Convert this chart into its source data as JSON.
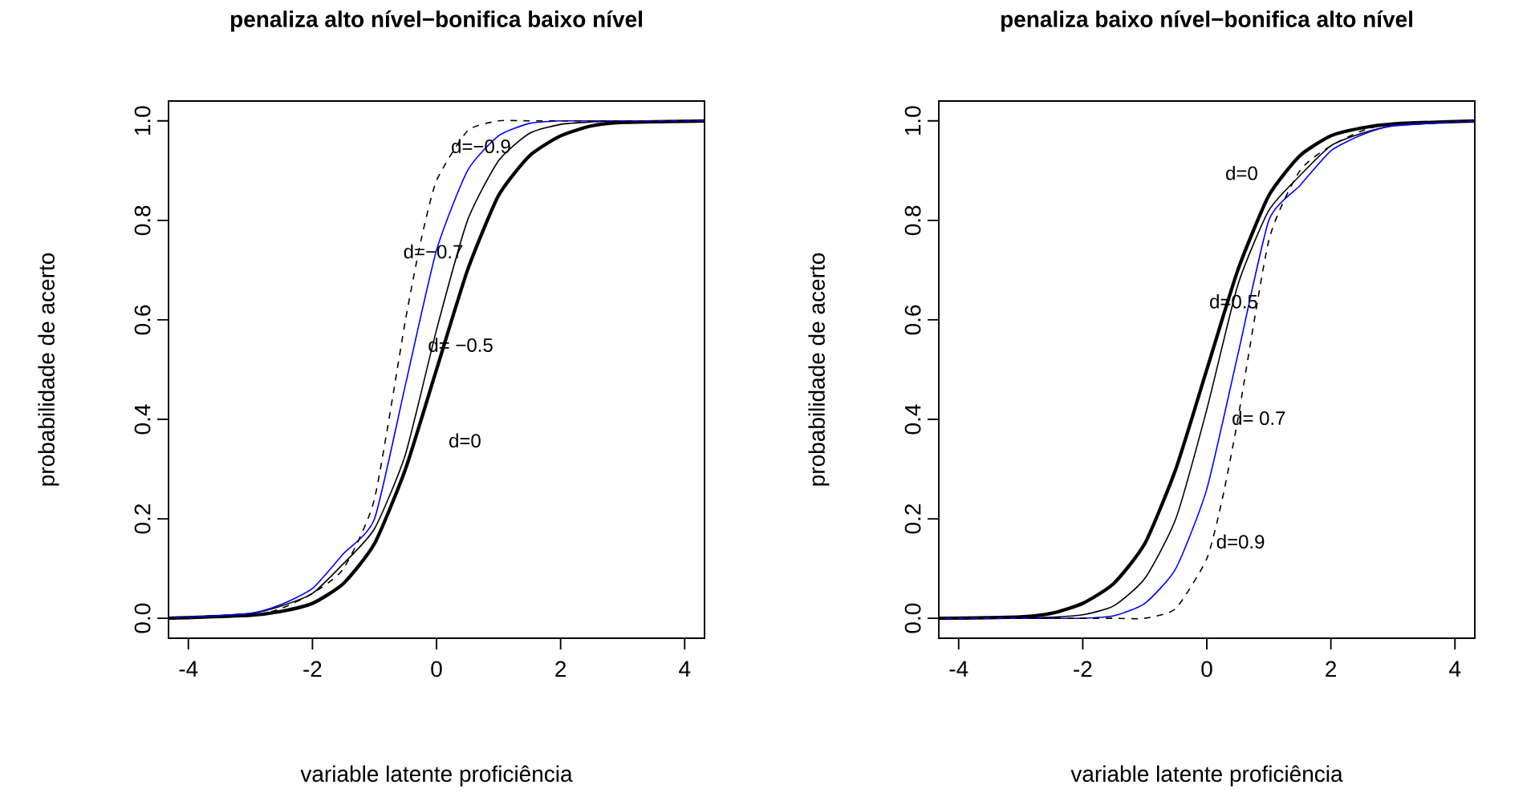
{
  "chart_data": [
    {
      "type": "line",
      "title": "penaliza alto nível−bonifica baixo nível",
      "xlabel": "variable latente proficiência",
      "ylabel": "probabilidade de acerto",
      "xlim": [
        -4.32,
        4.32
      ],
      "ylim": [
        -0.04,
        1.04
      ],
      "xticks": [
        -4,
        -2,
        0,
        2,
        4
      ],
      "yticks": [
        {
          "value": 0,
          "label": "0.0"
        },
        {
          "value": 0.2,
          "label": "0.2"
        },
        {
          "value": 0.4,
          "label": "0.4"
        },
        {
          "value": 0.6,
          "label": "0.6"
        },
        {
          "value": 0.8,
          "label": "0.8"
        },
        {
          "value": 1,
          "label": "1.0"
        }
      ],
      "grid": false,
      "marker": "none",
      "series": [
        {
          "color": "#000000",
          "line_style": "solid",
          "x": [
            -4.32,
            -3,
            -2.5,
            -2,
            -1.5,
            -1,
            -0.5,
            0,
            0.5,
            1,
            1.5,
            2,
            2.5,
            3,
            4.32
          ],
          "values": [
            0,
            0.006,
            0.014,
            0.03,
            0.07,
            0.15,
            0.3,
            0.5,
            0.7,
            0.85,
            0.93,
            0.97,
            0.99,
            0.997,
            1
          ]
        },
        {
          "color": "#000000",
          "line_style": "solid",
          "x": [
            -4.32,
            -3,
            -2.5,
            -2,
            -1.5,
            -1,
            -0.5,
            0,
            0.5,
            1,
            1.5,
            2,
            2.5,
            3,
            4.32
          ],
          "values": [
            0,
            0.01,
            0.025,
            0.05,
            0.11,
            0.18,
            0.33,
            0.58,
            0.8,
            0.92,
            0.975,
            0.993,
            0.998,
            1,
            1
          ]
        },
        {
          "color": "#0000ff",
          "line_style": "solid",
          "x": [
            -4.32,
            -3,
            -2.5,
            -2,
            -1.5,
            -1,
            -0.5,
            0,
            0.5,
            1,
            1.5,
            2,
            2.5,
            3,
            4.32
          ],
          "values": [
            0,
            0.01,
            0.028,
            0.06,
            0.13,
            0.2,
            0.47,
            0.74,
            0.9,
            0.97,
            0.995,
            1,
            1,
            1,
            1
          ]
        },
        {
          "color": "#000000",
          "line_style": "dashed",
          "x": [
            -4.32,
            -3,
            -2.5,
            -2,
            -1.5,
            -1,
            -0.5,
            -0.25,
            0,
            0.5,
            1,
            1.5,
            2,
            3,
            4.32
          ],
          "values": [
            0,
            0.005,
            0.02,
            0.05,
            0.1,
            0.24,
            0.6,
            0.76,
            0.88,
            0.98,
            1,
            1,
            1,
            1,
            1
          ]
        }
      ],
      "annotations": [
        "d=−0.9",
        "d=−0.7",
        "d= −0.5",
        "d=0"
      ]
    },
    {
      "type": "line",
      "title": "penaliza baixo nível−bonifica alto nível",
      "xlabel": "variable latente proficiência",
      "ylabel": "probabilidade de acerto",
      "xlim": [
        -4.32,
        4.32
      ],
      "ylim": [
        -0.04,
        1.04
      ],
      "xticks": [
        -4,
        -2,
        0,
        2,
        4
      ],
      "yticks": [
        {
          "value": 0,
          "label": "0.0"
        },
        {
          "value": 0.2,
          "label": "0.2"
        },
        {
          "value": 0.4,
          "label": "0.4"
        },
        {
          "value": 0.6,
          "label": "0.6"
        },
        {
          "value": 0.8,
          "label": "0.8"
        },
        {
          "value": 1,
          "label": "1.0"
        }
      ],
      "grid": false,
      "marker": "none",
      "series": [
        {
          "color": "#000000",
          "line_style": "solid",
          "x": [
            -4.32,
            -3,
            -2.5,
            -2,
            -1.5,
            -1,
            -0.5,
            0,
            0.5,
            1,
            1.5,
            2,
            2.5,
            3,
            4.32
          ],
          "values": [
            0,
            0.003,
            0.01,
            0.03,
            0.07,
            0.15,
            0.3,
            0.5,
            0.7,
            0.85,
            0.93,
            0.97,
            0.986,
            0.994,
            1
          ]
        },
        {
          "color": "#000000",
          "line_style": "solid",
          "x": [
            -4.32,
            -3,
            -2.5,
            -2,
            -1.5,
            -1,
            -0.5,
            0,
            0.5,
            1,
            1.5,
            2,
            2.5,
            3,
            4.32
          ],
          "values": [
            0,
            0,
            0.002,
            0.007,
            0.025,
            0.08,
            0.2,
            0.42,
            0.67,
            0.82,
            0.89,
            0.95,
            0.975,
            0.99,
            1
          ]
        },
        {
          "color": "#0000ff",
          "line_style": "solid",
          "x": [
            -4.32,
            -3,
            -2.5,
            -2,
            -1.5,
            -1,
            -0.5,
            0,
            0.5,
            1,
            1.5,
            2,
            2.5,
            3,
            4.32
          ],
          "values": [
            0,
            0,
            0,
            0,
            0.005,
            0.03,
            0.1,
            0.26,
            0.53,
            0.8,
            0.87,
            0.94,
            0.972,
            0.99,
            1
          ]
        },
        {
          "color": "#000000",
          "line_style": "dashed",
          "x": [
            -4.32,
            -3,
            -2,
            -1.5,
            -1,
            -0.5,
            0,
            0.25,
            0.5,
            1,
            1.5,
            2,
            2.5,
            3,
            4.32
          ],
          "values": [
            0,
            0,
            0,
            0,
            0,
            0.02,
            0.12,
            0.24,
            0.4,
            0.76,
            0.9,
            0.95,
            0.98,
            0.995,
            1
          ]
        }
      ],
      "annotations": [
        "d=0",
        "d=0.5",
        "d= 0.7",
        "d=0.9"
      ]
    }
  ]
}
